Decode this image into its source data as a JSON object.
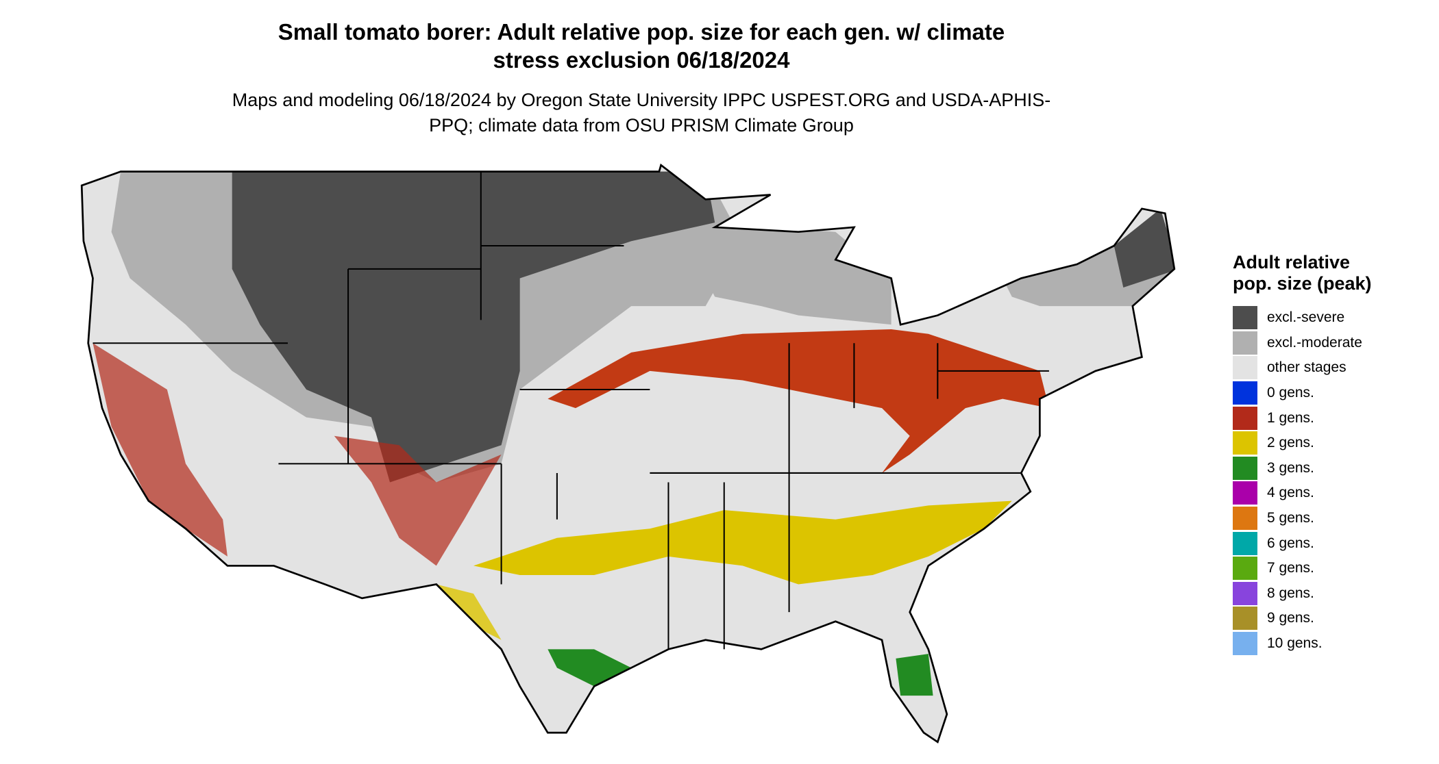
{
  "header": {
    "title": "Small tomato borer: Adult relative pop. size for each gen. w/ climate stress exclusion 06/18/2024",
    "subtitle": "Maps and modeling 06/18/2024 by Oregon State University IPPC USPEST.ORG and USDA-APHIS-PPQ; climate data from OSU PRISM Climate Group"
  },
  "legend": {
    "title": "Adult relative pop. size (peak)",
    "items": [
      {
        "label": "excl.-severe",
        "color": "#4d4d4d"
      },
      {
        "label": "excl.-moderate",
        "color": "#b0b0b0"
      },
      {
        "label": "other stages",
        "color": "#e3e3e3"
      },
      {
        "label": "0 gens.",
        "color": "#0033dd"
      },
      {
        "label": "1 gens.",
        "color": "#b22a1a"
      },
      {
        "label": "2 gens.",
        "color": "#dcc400"
      },
      {
        "label": "3 gens.",
        "color": "#228b22"
      },
      {
        "label": "4 gens.",
        "color": "#aa00aa"
      },
      {
        "label": "5 gens.",
        "color": "#dd7711"
      },
      {
        "label": "6 gens.",
        "color": "#00a8a8"
      },
      {
        "label": "7 gens.",
        "color": "#5aaa10"
      },
      {
        "label": "8 gens.",
        "color": "#8844dd"
      },
      {
        "label": "9 gens.",
        "color": "#a89028"
      },
      {
        "label": "10 gens.",
        "color": "#77b0ee"
      }
    ]
  }
}
